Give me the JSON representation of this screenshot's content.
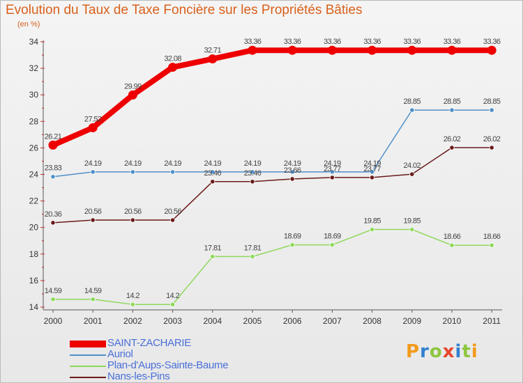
{
  "title": "Evolution du Taux de Taxe Foncière sur les Propriétés Bâties",
  "subtitle": "(en %)",
  "logo": {
    "text": "Proxiti",
    "colors": [
      "#f39a1c",
      "#2f7fd0",
      "#8cc63f",
      "#e8452c",
      "#2f7fd0",
      "#8cc63f",
      "#f39a1c"
    ]
  },
  "chart_data": {
    "type": "line",
    "x": [
      "2000",
      "2001",
      "2002",
      "2003",
      "2004",
      "2005",
      "2006",
      "2007",
      "2008",
      "2009",
      "2010",
      "2011"
    ],
    "ylim": [
      14,
      34
    ],
    "yticks": [
      14,
      16,
      18,
      20,
      22,
      24,
      26,
      28,
      30,
      32,
      34
    ],
    "grid": false,
    "series": [
      {
        "name": "SAINT-ZACHARIE",
        "color": "#ee0000",
        "emphasis": true,
        "values": [
          26.21,
          27.52,
          29.99,
          32.08,
          32.71,
          33.36,
          33.36,
          33.36,
          33.36,
          33.36,
          33.36,
          33.36
        ],
        "labels": [
          "26.21",
          "27.52",
          "29.99",
          "32.08",
          "32.71",
          "33.36",
          "33.36",
          "33.36",
          "33.36",
          "33.36",
          "33.36",
          "33.36"
        ]
      },
      {
        "name": "Auriol",
        "color": "#4f8fc8",
        "values": [
          23.83,
          24.19,
          24.19,
          24.19,
          24.19,
          24.19,
          24.19,
          24.19,
          24.19,
          28.85,
          28.85,
          28.85
        ],
        "labels": [
          "23.83",
          "24.19",
          "24.19",
          "24.19",
          "24.19",
          "24.19",
          "24.19",
          "24.19",
          "24.19",
          "28.85",
          "28.85",
          "28.85"
        ]
      },
      {
        "name": "Plan-d'Aups-Sainte-Baume",
        "color": "#8ed85a",
        "values": [
          14.59,
          14.59,
          14.2,
          14.2,
          17.81,
          17.81,
          18.69,
          18.69,
          19.85,
          19.85,
          18.66,
          18.66
        ],
        "labels": [
          "14.59",
          "14.59",
          "14.2",
          "14.2",
          "17.81",
          "17.81",
          "18.69",
          "18.69",
          "19.85",
          "19.85",
          "18.66",
          "18.66"
        ]
      },
      {
        "name": "Nans-les-Pins",
        "color": "#6a1a1a",
        "values": [
          20.36,
          20.56,
          20.56,
          20.56,
          23.46,
          23.46,
          23.66,
          23.77,
          23.77,
          24.02,
          26.02,
          26.02
        ],
        "labels": [
          "20.36",
          "20.56",
          "20.56",
          "20.56",
          "23.46",
          "23.46",
          "23.66",
          "23.77",
          "23.77",
          "24.02",
          "26.02",
          "26.02"
        ]
      }
    ]
  }
}
